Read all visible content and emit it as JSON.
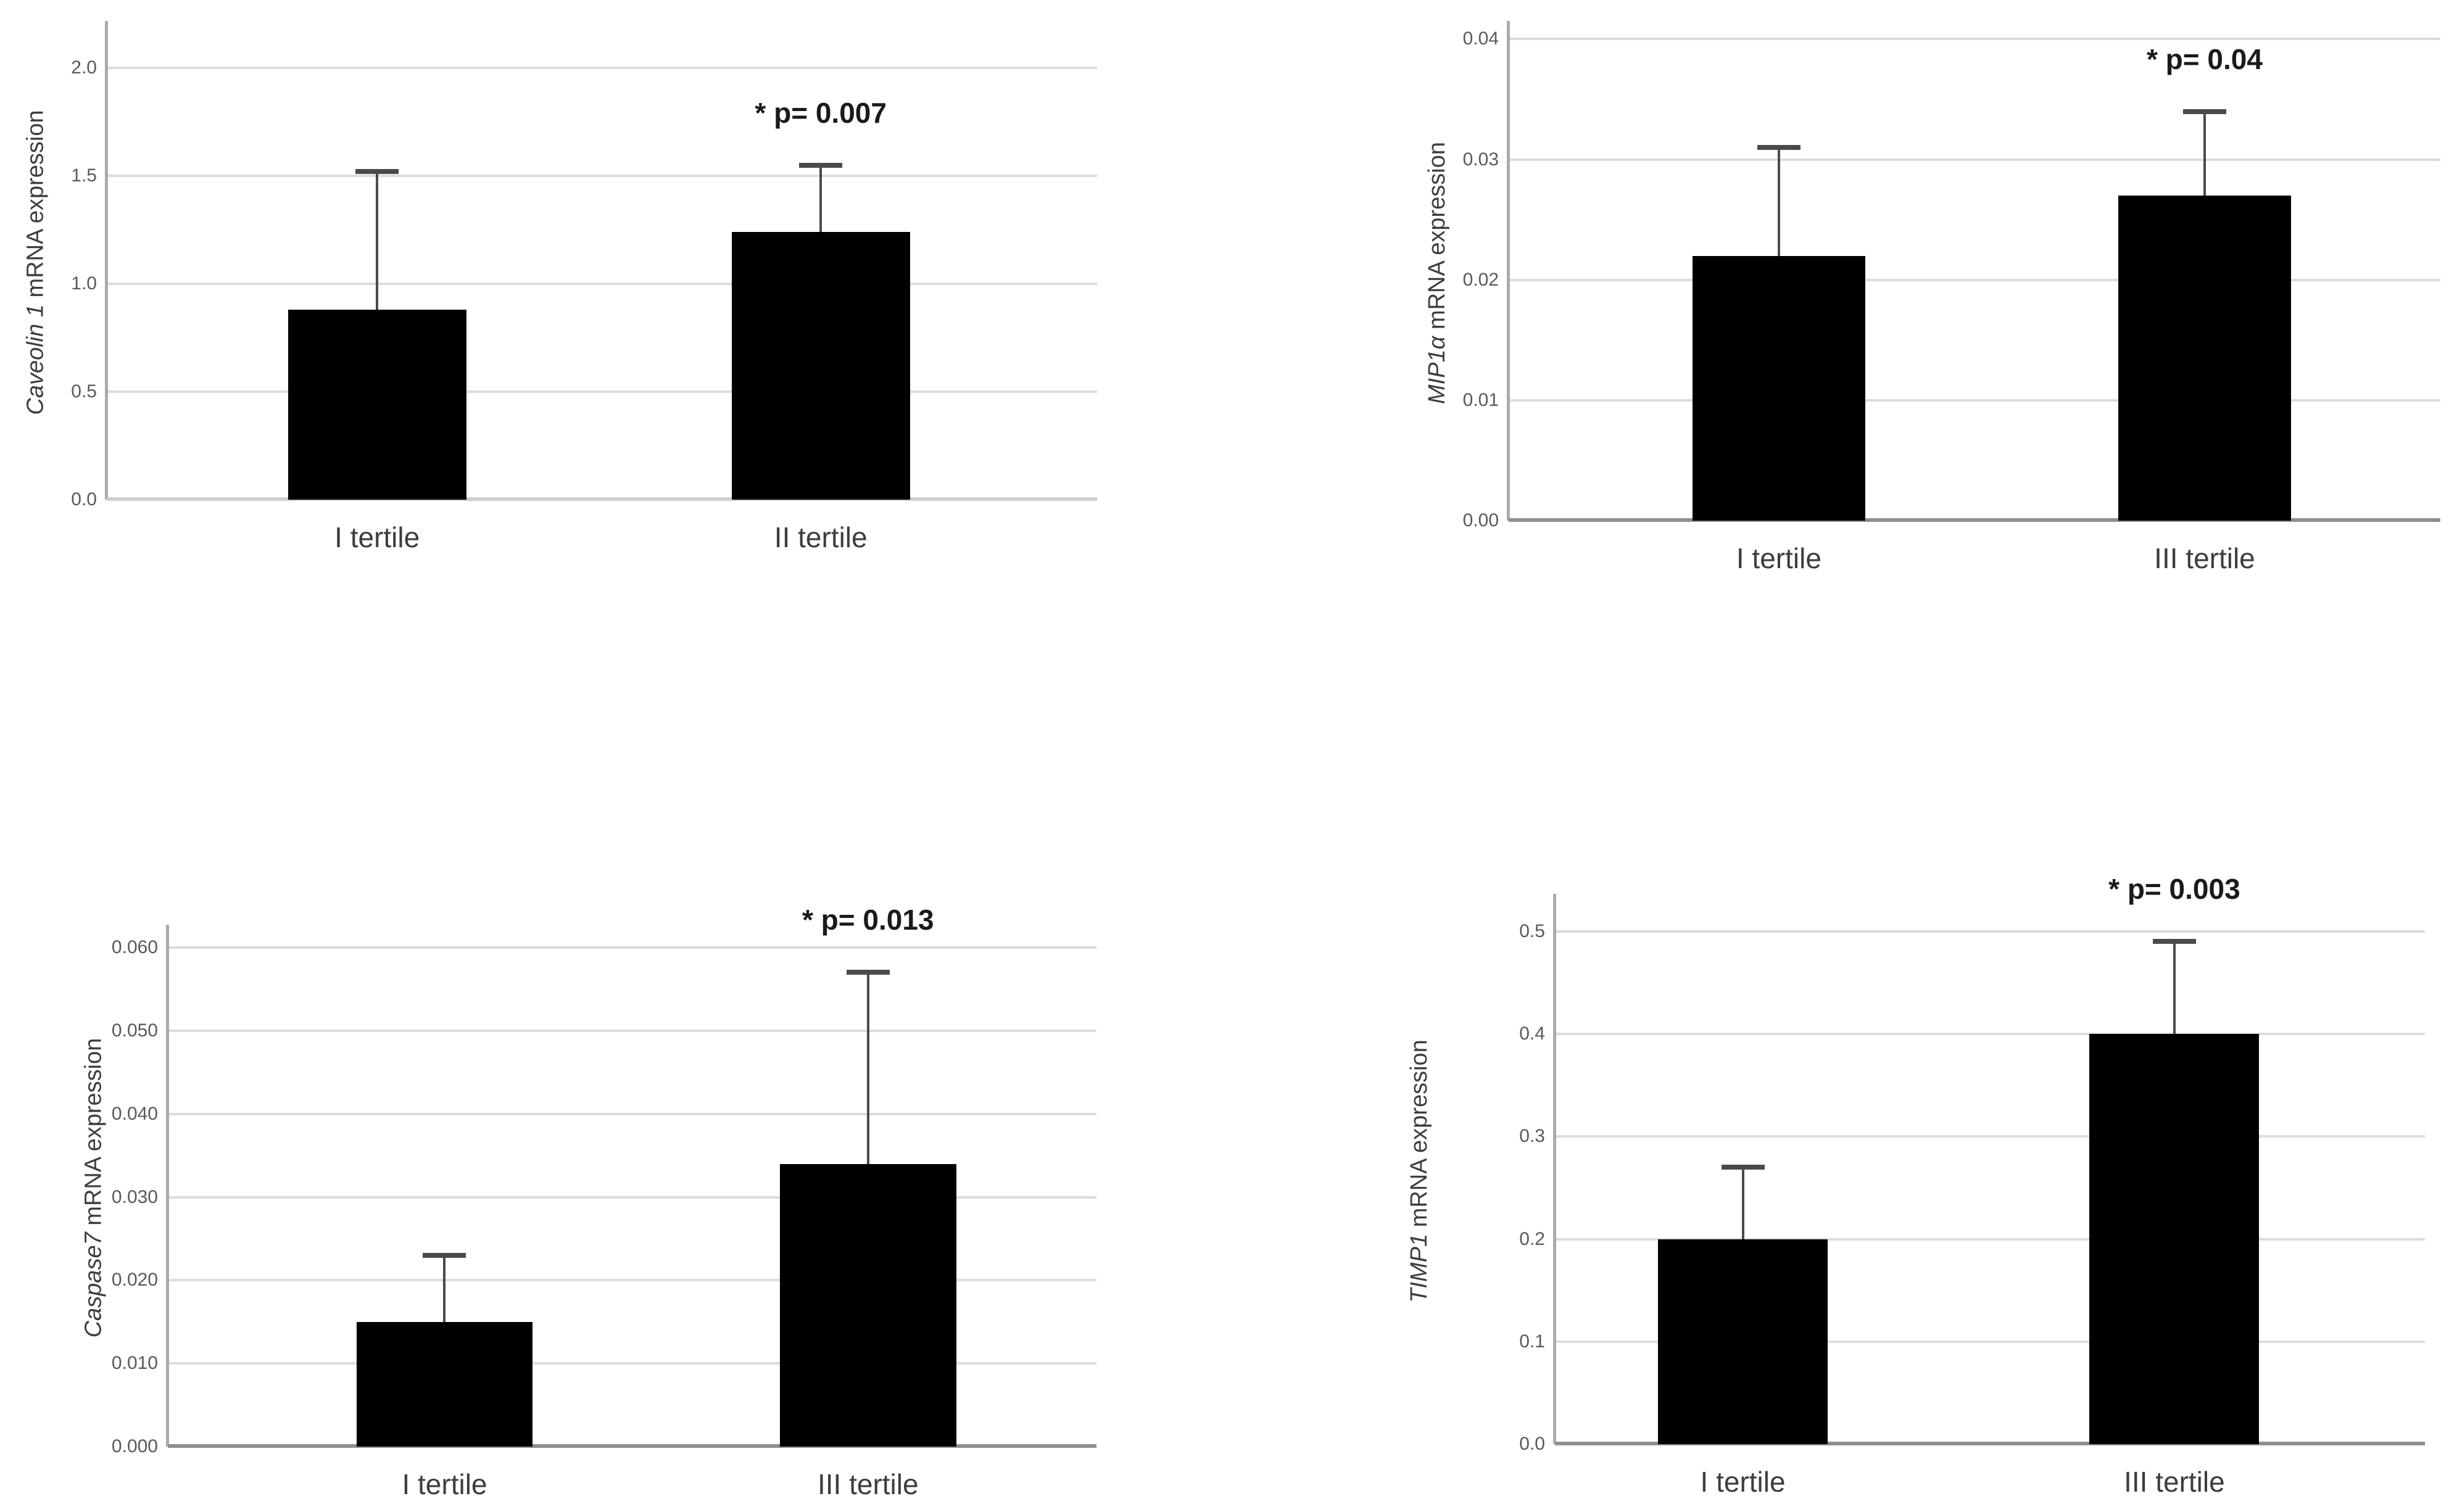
{
  "figure": {
    "background": "#ffffff",
    "layout": "2x2 panel bar chart figure",
    "significance_marker": "*"
  },
  "style": {
    "bar_color": "#000000",
    "gridline_color": "#dcdcdc",
    "axis_line_color": "#ababab",
    "error_bar_color": "#4a4a4a",
    "tick_text_color": "#595959",
    "label_text_color": "#3d3d3d",
    "p_text_color": "#1a1a1a"
  },
  "chart_data": [
    {
      "type": "bar",
      "title": "",
      "ylabel_gene": "Caveolin 1",
      "ylabel_rest": " mRNA expression",
      "ylabel": "Caveolin 1 mRNA expression",
      "xlabel": "",
      "categories": [
        "I tertile",
        "II tertile"
      ],
      "values": [
        0.88,
        1.24
      ],
      "error_upper": [
        1.52,
        1.55
      ],
      "p_label": "* p= 0.007",
      "tick_labels": [
        "0.0",
        "0.5",
        "1.0",
        "1.5",
        "2.0"
      ],
      "tick_values": [
        0,
        0.5,
        1.0,
        1.5,
        2.0
      ],
      "ylim": [
        0,
        2.2
      ],
      "grid": true,
      "legend": "none"
    },
    {
      "type": "bar",
      "title": "",
      "ylabel_gene": "MIP1α",
      "ylabel_rest": " mRNA expression",
      "ylabel": "MIP1α mRNA expression",
      "xlabel": "",
      "categories": [
        "I tertile",
        "III tertile"
      ],
      "values": [
        0.022,
        0.027
      ],
      "error_upper": [
        0.031,
        0.034
      ],
      "p_label": "* p= 0.04",
      "tick_labels": [
        "0.00",
        "0.01",
        "0.02",
        "0.03",
        "0.04"
      ],
      "tick_values": [
        0,
        0.01,
        0.02,
        0.03,
        0.04
      ],
      "ylim": [
        0,
        0.0412
      ],
      "grid": true,
      "legend": "none"
    },
    {
      "type": "bar",
      "title": "",
      "ylabel_gene": "Caspase7",
      "ylabel_rest": " mRNA expression",
      "ylabel": "Caspase7 mRNA expression",
      "xlabel": "",
      "categories": [
        "I tertile",
        "III tertile"
      ],
      "values": [
        0.015,
        0.034
      ],
      "error_upper": [
        0.023,
        0.057
      ],
      "p_label": "* p= 0.013",
      "tick_labels": [
        "0.000",
        "0.010",
        "0.020",
        "0.030",
        "0.040",
        "0.050",
        "0.060"
      ],
      "tick_values": [
        0,
        0.01,
        0.02,
        0.03,
        0.04,
        0.05,
        0.06
      ],
      "ylim": [
        0,
        0.0623
      ],
      "grid": true,
      "legend": "none"
    },
    {
      "type": "bar",
      "title": "",
      "ylabel_gene": "TIMP1",
      "ylabel_rest": " mRNA expression",
      "ylabel": "TIMP1 mRNA expression",
      "xlabel": "",
      "categories": [
        "I tertile",
        "III tertile"
      ],
      "values": [
        0.2,
        0.4
      ],
      "error_upper": [
        0.27,
        0.49
      ],
      "p_label": "* p= 0.003",
      "tick_labels": [
        "0.0",
        "0.1",
        "0.2",
        "0.3",
        "0.4",
        "0.5"
      ],
      "tick_values": [
        0,
        0.1,
        0.2,
        0.3,
        0.4,
        0.5
      ],
      "ylim": [
        0,
        0.533
      ],
      "grid": true,
      "legend": "none"
    }
  ]
}
